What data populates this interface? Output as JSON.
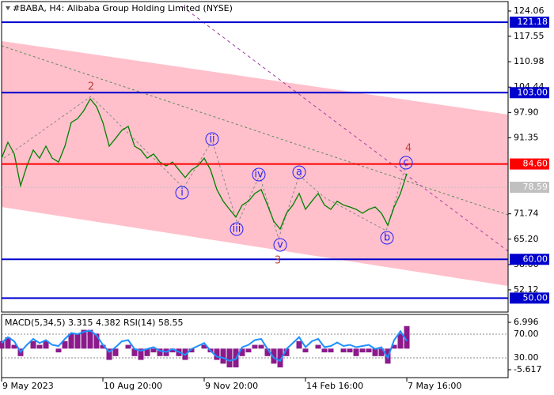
{
  "chart_data": [
    {
      "type": "line",
      "title": "#BABA, H4:  Alibaba Group Holding Limited (NYSE)",
      "x": [
        0,
        1,
        2,
        3,
        4,
        5,
        6,
        7,
        8,
        9,
        10,
        11,
        12,
        13,
        14,
        15,
        16,
        17,
        18,
        19,
        20,
        21,
        22,
        23,
        24,
        25,
        26,
        27,
        28,
        29,
        30,
        31,
        32,
        33,
        34,
        35,
        36,
        37,
        38,
        39,
        40,
        41,
        42,
        43,
        44,
        45,
        46,
        47,
        48,
        49,
        50,
        51,
        52,
        53,
        54,
        55,
        56,
        57,
        58,
        59,
        60,
        61,
        62,
        63,
        64
      ],
      "series": [
        {
          "color": "#008000",
          "values": [
            86.1,
            90.2,
            87.2,
            79.0,
            84.1,
            88.2,
            86.1,
            89.2,
            86.1,
            85.1,
            89.2,
            95.3,
            96.3,
            98.4,
            101.4,
            99.4,
            95.3,
            89.2,
            91.2,
            93.3,
            94.3,
            89.2,
            88.2,
            86.1,
            87.2,
            85.1,
            84.1,
            85.1,
            83.1,
            81.1,
            83.1,
            84.1,
            86.1,
            83.1,
            78.0,
            75.0,
            72.9,
            70.9,
            74.0,
            75.0,
            77.0,
            78.0,
            74.0,
            69.8,
            67.8,
            71.9,
            74.0,
            77.0,
            72.9,
            75.0,
            77.0,
            74.0,
            72.9,
            75.0,
            74.0,
            73.5,
            72.9,
            71.9,
            72.9,
            73.5,
            71.9,
            68.8,
            73.5,
            77.0,
            82.1
          ]
        }
      ],
      "xlim": [
        0,
        80
      ],
      "xticks": [
        {
          "value": 0,
          "label": "9 May 2023"
        },
        {
          "value": 16,
          "label": "10 Aug 20:00"
        },
        {
          "value": 32,
          "label": "9 Nov 20:00"
        },
        {
          "value": 48,
          "label": "14 Feb 16:00"
        },
        {
          "value": 64,
          "label": "7 May 16:00"
        }
      ],
      "ylim": [
        46.4,
        126.5
      ],
      "yticks": [
        124.06,
        117.55,
        110.98,
        104.44,
        {
          "value": 97.9,
          "label": "97.90"
        },
        91.35,
        71.74,
        {
          "value": 65.2,
          "label": "65.20"
        },
        58.66,
        52.12
      ],
      "levels": [
        {
          "value": 121.18,
          "color": "#0000cd"
        },
        {
          "value": 103,
          "label": "103.00",
          "color": "#0000cd"
        },
        {
          "value": 84.6,
          "label": "84.60",
          "color": "#ff0000"
        },
        {
          "value": 60,
          "label": "60.00",
          "color": "#0000cd"
        },
        {
          "value": 50,
          "label": "50.00",
          "color": "#0000cd"
        }
      ],
      "last_price": 78.59,
      "annotations": [
        "2",
        "i",
        "ii",
        "iii",
        "iv",
        "v",
        "3",
        "a",
        "b",
        "c",
        "4"
      ]
    },
    {
      "type": "macd-rsi",
      "title": "MACD(5,34,5) 3.315 4.382 RSI(14) 58.55",
      "x": [
        0,
        1,
        2,
        3,
        4,
        5,
        6,
        7,
        8,
        9,
        10,
        11,
        12,
        13,
        14,
        15,
        16,
        17,
        18,
        19,
        20,
        21,
        22,
        23,
        24,
        25,
        26,
        27,
        28,
        29,
        30,
        31,
        32,
        33,
        34,
        35,
        36,
        37,
        38,
        39,
        40,
        41,
        42,
        43,
        44,
        45,
        46,
        47,
        48,
        49,
        50,
        51,
        52,
        53,
        54,
        55,
        56,
        57,
        58,
        59,
        60,
        61,
        62,
        63,
        64
      ],
      "series": [
        {
          "color": "#8b1a8b",
          "values": [
            2,
            3,
            1,
            -2,
            0,
            2,
            1,
            2,
            0,
            -1,
            2,
            4,
            4,
            5,
            5,
            4,
            1,
            -3,
            -2,
            0,
            1,
            -2,
            -3,
            -2,
            -1,
            -2,
            -2,
            -1,
            -2,
            -3,
            -1,
            0,
            1,
            -1,
            -3,
            -4,
            -5,
            -5,
            -2,
            -1,
            1,
            1,
            -2,
            -4,
            -5,
            -2,
            0,
            2,
            -1,
            0,
            1,
            -1,
            -1,
            0,
            -1,
            -1,
            -2,
            -1,
            -1,
            -2,
            -2,
            -4,
            1,
            4,
            6
          ]
        },
        {
          "color": "#1e90ff",
          "axis": "y2",
          "values": [
            55,
            65,
            58,
            40,
            52,
            62,
            55,
            60,
            52,
            50,
            62,
            72,
            70,
            74,
            76,
            68,
            52,
            40,
            48,
            58,
            60,
            45,
            42,
            45,
            48,
            42,
            40,
            45,
            40,
            35,
            45,
            50,
            55,
            42,
            32,
            30,
            25,
            28,
            48,
            52,
            60,
            62,
            45,
            30,
            25,
            45,
            55,
            65,
            48,
            58,
            62,
            48,
            50,
            56,
            50,
            52,
            48,
            50,
            52,
            45,
            48,
            30,
            60,
            75,
            58.55
          ]
        }
      ],
      "xlim": [
        0,
        80
      ],
      "ylim": [
        -7.72,
        9.1
      ],
      "yticks": [
        6.996,
        -5.617
      ],
      "y2lim": [
        -3.3,
        103.3
      ],
      "y2ticks": [
        {
          "value": 70,
          "label": "70.00"
        },
        {
          "value": 30,
          "label": "30.00"
        }
      ]
    }
  ]
}
